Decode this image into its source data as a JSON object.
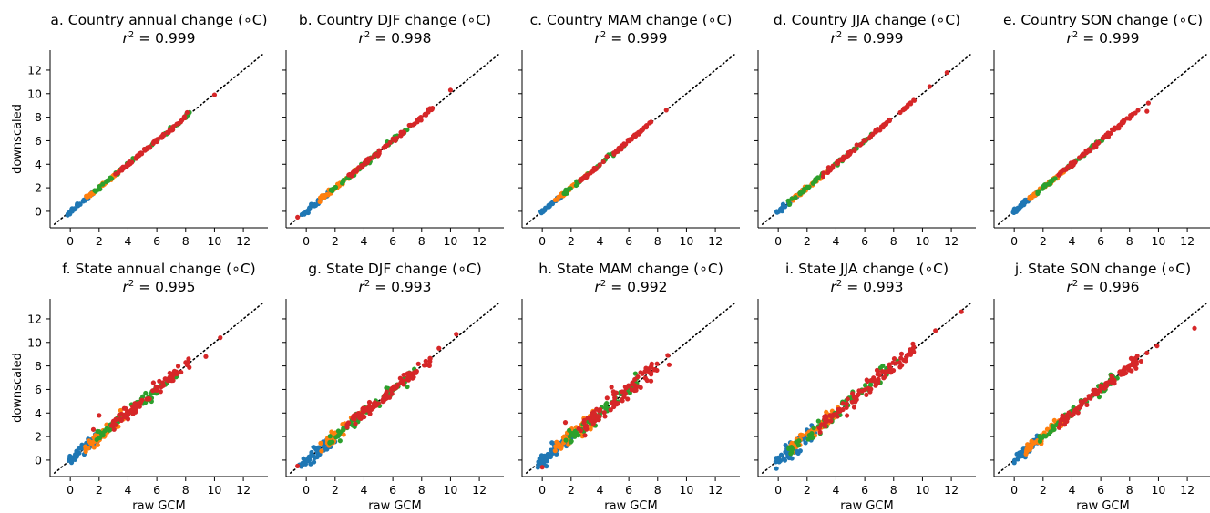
{
  "chart_data": [
    {
      "id": "a",
      "type": "scatter",
      "title": "a. Country annual change ($^\\circ$C)",
      "subtitle": "$r^2 = 0.999$",
      "title_display": "a. Country annual change (∘C)",
      "r2_value": "0.999",
      "xlabel": "",
      "ylabel": "downscaled",
      "xlim": [
        -1.4,
        13.7
      ],
      "ylim": [
        -1.4,
        13.7
      ],
      "xticks": [
        0,
        2,
        4,
        6,
        8,
        10,
        12
      ],
      "yticks": [
        0,
        2,
        4,
        6,
        8,
        10,
        12
      ],
      "show_xticklabels": true,
      "show_yticklabels": true,
      "spread": 0.08,
      "extremes": [
        [
          8.1,
          8.4
        ],
        [
          10.0,
          9.9
        ]
      ],
      "series": [
        {
          "name": "",
          "color": "#1f77b4",
          "range": [
            -0.2,
            1.6
          ],
          "n": 40
        },
        {
          "name": "",
          "color": "#ff7f0e",
          "range": [
            0.9,
            3.6
          ],
          "n": 40
        },
        {
          "name": "",
          "color": "#2ca02c",
          "range": [
            1.6,
            8.3
          ],
          "n": 45
        },
        {
          "name": "",
          "color": "#d62728",
          "range": [
            3.0,
            8.0
          ],
          "n": 70
        }
      ]
    },
    {
      "id": "b",
      "type": "scatter",
      "title": "b. Country DJF change ($^\\circ$C)",
      "subtitle": "$r^2 = 0.998$",
      "title_display": "b. Country DJF change (∘C)",
      "r2_value": "0.998",
      "xlabel": "",
      "ylabel": "",
      "xlim": [
        -1.4,
        13.7
      ],
      "ylim": [
        -1.4,
        13.7
      ],
      "xticks": [
        0,
        2,
        4,
        6,
        8,
        10,
        12
      ],
      "yticks": [
        0,
        2,
        4,
        6,
        8,
        10,
        12
      ],
      "show_xticklabels": true,
      "show_yticklabels": false,
      "spread": 0.1,
      "extremes": [
        [
          -0.6,
          -0.5
        ],
        [
          10.0,
          10.3
        ]
      ],
      "series": [
        {
          "name": "",
          "color": "#1f77b4",
          "range": [
            -0.3,
            1.6
          ],
          "n": 40
        },
        {
          "name": "",
          "color": "#ff7f0e",
          "range": [
            0.9,
            3.6
          ],
          "n": 40
        },
        {
          "name": "",
          "color": "#2ca02c",
          "range": [
            1.6,
            7.2
          ],
          "n": 45
        },
        {
          "name": "",
          "color": "#d62728",
          "range": [
            2.9,
            8.8
          ],
          "n": 70
        }
      ]
    },
    {
      "id": "c",
      "type": "scatter",
      "title": "c. Country MAM change ($^\\circ$C)",
      "subtitle": "$r^2 = 0.999$",
      "title_display": "c. Country MAM change (∘C)",
      "r2_value": "0.999",
      "xlabel": "",
      "ylabel": "",
      "xlim": [
        -1.4,
        13.7
      ],
      "ylim": [
        -1.4,
        13.7
      ],
      "xticks": [
        0,
        2,
        4,
        6,
        8,
        10,
        12
      ],
      "yticks": [
        0,
        2,
        4,
        6,
        8,
        10,
        12
      ],
      "show_xticklabels": true,
      "show_yticklabels": false,
      "spread": 0.08,
      "extremes": [
        [
          8.6,
          8.6
        ]
      ],
      "series": [
        {
          "name": "",
          "color": "#1f77b4",
          "range": [
            -0.1,
            1.4
          ],
          "n": 40
        },
        {
          "name": "",
          "color": "#ff7f0e",
          "range": [
            0.8,
            3.4
          ],
          "n": 40
        },
        {
          "name": "",
          "color": "#2ca02c",
          "range": [
            1.5,
            5.8
          ],
          "n": 45
        },
        {
          "name": "",
          "color": "#d62728",
          "range": [
            2.6,
            7.6
          ],
          "n": 70
        }
      ]
    },
    {
      "id": "d",
      "type": "scatter",
      "title": "d. Country JJA change ($^\\circ$C)",
      "subtitle": "$r^2 = 0.999$",
      "title_display": "d. Country JJA change (∘C)",
      "r2_value": "0.999",
      "xlabel": "",
      "ylabel": "",
      "xlim": [
        -1.4,
        13.7
      ],
      "ylim": [
        -1.4,
        13.7
      ],
      "xticks": [
        0,
        2,
        4,
        6,
        8,
        10,
        12
      ],
      "yticks": [
        0,
        2,
        4,
        6,
        8,
        10,
        12
      ],
      "show_xticklabels": true,
      "show_yticklabels": false,
      "spread": 0.09,
      "extremes": [
        [
          10.5,
          10.6
        ],
        [
          11.7,
          11.8
        ]
      ],
      "series": [
        {
          "name": "",
          "color": "#1f77b4",
          "range": [
            -0.1,
            1.8
          ],
          "n": 40
        },
        {
          "name": "",
          "color": "#ff7f0e",
          "range": [
            0.9,
            3.6
          ],
          "n": 40
        },
        {
          "name": "",
          "color": "#2ca02c",
          "range": [
            0.4,
            7.0
          ],
          "n": 45
        },
        {
          "name": "",
          "color": "#d62728",
          "range": [
            3.0,
            9.6
          ],
          "n": 70
        }
      ]
    },
    {
      "id": "e",
      "type": "scatter",
      "title": "e. Country SON change ($^\\circ$C)",
      "subtitle": "$r^2 = 0.999$",
      "title_display": "e. Country SON change (∘C)",
      "r2_value": "0.999",
      "xlabel": "",
      "ylabel": "",
      "xlim": [
        -1.4,
        13.7
      ],
      "ylim": [
        -1.4,
        13.7
      ],
      "xticks": [
        0,
        2,
        4,
        6,
        8,
        10,
        12
      ],
      "yticks": [
        0,
        2,
        4,
        6,
        8,
        10,
        12
      ],
      "show_xticklabels": true,
      "show_yticklabels": false,
      "spread": 0.08,
      "extremes": [
        [
          9.2,
          8.5
        ],
        [
          9.3,
          9.2
        ]
      ],
      "series": [
        {
          "name": "",
          "color": "#1f77b4",
          "range": [
            -0.1,
            1.6
          ],
          "n": 40
        },
        {
          "name": "",
          "color": "#ff7f0e",
          "range": [
            0.9,
            3.6
          ],
          "n": 40
        },
        {
          "name": "",
          "color": "#2ca02c",
          "range": [
            1.5,
            6.6
          ],
          "n": 45
        },
        {
          "name": "",
          "color": "#d62728",
          "range": [
            3.0,
            8.6
          ],
          "n": 70
        }
      ]
    },
    {
      "id": "f",
      "type": "scatter",
      "title": "f. State annual change ($^\\circ$C)",
      "subtitle": "$r^2 = 0.995$",
      "title_display": "f. State annual change (∘C)",
      "r2_value": "0.995",
      "xlabel": "raw GCM",
      "ylabel": "downscaled",
      "xlim": [
        -1.4,
        13.7
      ],
      "ylim": [
        -1.4,
        13.7
      ],
      "xticks": [
        0,
        2,
        4,
        6,
        8,
        10,
        12
      ],
      "yticks": [
        0,
        2,
        4,
        6,
        8,
        10,
        12
      ],
      "show_xticklabels": true,
      "show_yticklabels": true,
      "spread": 0.25,
      "extremes": [
        [
          9.4,
          8.8
        ],
        [
          10.4,
          10.4
        ],
        [
          8.2,
          8.6
        ],
        [
          1.6,
          2.6
        ],
        [
          2.0,
          3.8
        ]
      ],
      "series": [
        {
          "name": "",
          "color": "#1f77b4",
          "range": [
            -0.1,
            2.0
          ],
          "n": 50
        },
        {
          "name": "",
          "color": "#ff7f0e",
          "range": [
            0.8,
            3.8
          ],
          "n": 50
        },
        {
          "name": "",
          "color": "#2ca02c",
          "range": [
            1.8,
            7.6
          ],
          "n": 60
        },
        {
          "name": "",
          "color": "#d62728",
          "range": [
            2.8,
            8.4
          ],
          "n": 90
        }
      ]
    },
    {
      "id": "g",
      "type": "scatter",
      "title": "g. State DJF change ($^\\circ$C)",
      "subtitle": "$r^2 = 0.993$",
      "title_display": "g. State DJF change (∘C)",
      "r2_value": "0.993",
      "xlabel": "raw GCM",
      "ylabel": "",
      "xlim": [
        -1.4,
        13.7
      ],
      "ylim": [
        -1.4,
        13.7
      ],
      "xticks": [
        0,
        2,
        4,
        6,
        8,
        10,
        12
      ],
      "yticks": [
        0,
        2,
        4,
        6,
        8,
        10,
        12
      ],
      "show_xticklabels": true,
      "show_yticklabels": false,
      "spread": 0.28,
      "extremes": [
        [
          10.4,
          10.7
        ],
        [
          9.2,
          9.5
        ],
        [
          -0.6,
          -0.5
        ]
      ],
      "series": [
        {
          "name": "",
          "color": "#1f77b4",
          "range": [
            -0.5,
            2.4
          ],
          "n": 60
        },
        {
          "name": "",
          "color": "#ff7f0e",
          "range": [
            0.9,
            4.0
          ],
          "n": 50
        },
        {
          "name": "",
          "color": "#2ca02c",
          "range": [
            1.6,
            7.6
          ],
          "n": 60
        },
        {
          "name": "",
          "color": "#d62728",
          "range": [
            2.8,
            8.6
          ],
          "n": 90
        }
      ]
    },
    {
      "id": "h",
      "type": "scatter",
      "title": "h. State MAM change ($^\\circ$C)",
      "subtitle": "$r^2 = 0.992$",
      "title_display": "h. State MAM change (∘C)",
      "r2_value": "0.992",
      "xlabel": "raw GCM",
      "ylabel": "",
      "xlim": [
        -1.4,
        13.7
      ],
      "ylim": [
        -1.4,
        13.7
      ],
      "xticks": [
        0,
        2,
        4,
        6,
        8,
        10,
        12
      ],
      "yticks": [
        0,
        2,
        4,
        6,
        8,
        10,
        12
      ],
      "show_xticklabels": true,
      "show_yticklabels": false,
      "spread": 0.32,
      "extremes": [
        [
          8.8,
          8.1
        ],
        [
          8.7,
          8.9
        ],
        [
          1.6,
          3.2
        ],
        [
          0.0,
          -0.6
        ],
        [
          4.8,
          6.2
        ]
      ],
      "series": [
        {
          "name": "",
          "color": "#1f77b4",
          "range": [
            -0.4,
            2.2
          ],
          "n": 55
        },
        {
          "name": "",
          "color": "#ff7f0e",
          "range": [
            0.8,
            3.6
          ],
          "n": 50
        },
        {
          "name": "",
          "color": "#2ca02c",
          "range": [
            1.6,
            6.6
          ],
          "n": 60
        },
        {
          "name": "",
          "color": "#d62728",
          "range": [
            2.4,
            8.0
          ],
          "n": 90
        }
      ]
    },
    {
      "id": "i",
      "type": "scatter",
      "title": "i. State JJA change ($^\\circ$C)",
      "subtitle": "$r^2 = 0.993$",
      "title_display": "i. State JJA change (∘C)",
      "r2_value": "0.993",
      "xlabel": "raw GCM",
      "ylabel": "",
      "xlim": [
        -1.4,
        13.7
      ],
      "ylim": [
        -1.4,
        13.7
      ],
      "xticks": [
        0,
        2,
        4,
        6,
        8,
        10,
        12
      ],
      "yticks": [
        0,
        2,
        4,
        6,
        8,
        10,
        12
      ],
      "show_xticklabels": true,
      "show_yticklabels": false,
      "spread": 0.32,
      "extremes": [
        [
          12.7,
          12.6
        ],
        [
          10.9,
          11.0
        ],
        [
          9.4,
          9.6
        ]
      ],
      "series": [
        {
          "name": "",
          "color": "#1f77b4",
          "range": [
            -0.2,
            2.6
          ],
          "n": 60
        },
        {
          "name": "",
          "color": "#ff7f0e",
          "range": [
            0.8,
            4.2
          ],
          "n": 55
        },
        {
          "name": "",
          "color": "#2ca02c",
          "range": [
            0.6,
            8.4
          ],
          "n": 65
        },
        {
          "name": "",
          "color": "#d62728",
          "range": [
            2.8,
            9.4
          ],
          "n": 100
        }
      ]
    },
    {
      "id": "j",
      "type": "scatter",
      "title": "j. State SON change ($^\\circ$C)",
      "subtitle": "$r^2 = 0.996$",
      "title_display": "j. State SON change (∘C)",
      "r2_value": "0.996",
      "xlabel": "raw GCM",
      "ylabel": "",
      "xlim": [
        -1.4,
        13.7
      ],
      "ylim": [
        -1.4,
        13.7
      ],
      "xticks": [
        0,
        2,
        4,
        6,
        8,
        10,
        12
      ],
      "yticks": [
        0,
        2,
        4,
        6,
        8,
        10,
        12
      ],
      "show_xticklabels": true,
      "show_yticklabels": false,
      "spread": 0.22,
      "extremes": [
        [
          12.5,
          11.2
        ],
        [
          9.9,
          9.7
        ],
        [
          8.8,
          8.4
        ],
        [
          9.2,
          9.1
        ]
      ],
      "series": [
        {
          "name": "",
          "color": "#1f77b4",
          "range": [
            -0.1,
            1.8
          ],
          "n": 45
        },
        {
          "name": "",
          "color": "#ff7f0e",
          "range": [
            0.8,
            3.6
          ],
          "n": 45
        },
        {
          "name": "",
          "color": "#2ca02c",
          "range": [
            1.6,
            7.2
          ],
          "n": 55
        },
        {
          "name": "",
          "color": "#d62728",
          "range": [
            3.0,
            8.6
          ],
          "n": 90
        }
      ]
    }
  ]
}
